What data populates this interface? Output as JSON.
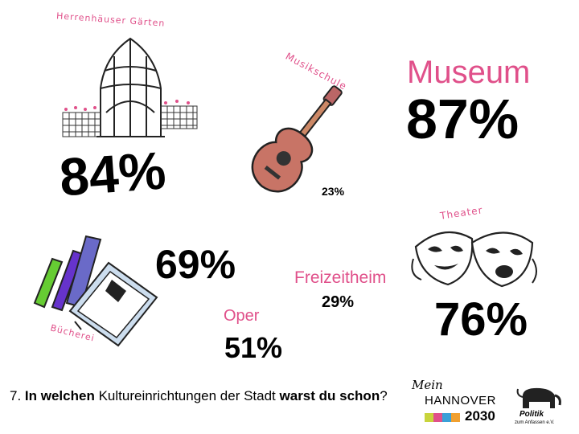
{
  "items": {
    "garden": {
      "label": "Herrenhäuser Gärten",
      "percent": "84%"
    },
    "music": {
      "label": "Musikschule",
      "percent": "23%"
    },
    "museum": {
      "label": "Museum",
      "percent": "87%"
    },
    "library": {
      "label": "Bücherei",
      "percent": "69%"
    },
    "opera": {
      "label": "Oper",
      "percent": "51%"
    },
    "leisure": {
      "label": "Freizeitheim",
      "percent": "29%"
    },
    "theater": {
      "label": "Theater",
      "percent": "76%"
    }
  },
  "question": {
    "number": "7.",
    "bold1": "In welchen",
    "normal1": "Kultureinrichtungen der Stadt",
    "bold2": "warst du schon",
    "end": "?"
  },
  "logo1": {
    "mein": "Mein",
    "name": "HANNOVER",
    "year": "2030"
  },
  "logo2": {
    "name": "Politik",
    "sub": "zum Anfassen e.V."
  }
}
